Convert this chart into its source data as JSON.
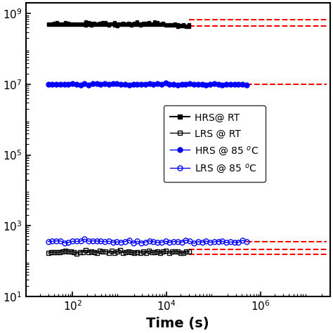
{
  "xlabel": "Time (s)",
  "xlim": [
    10,
    30000000.0
  ],
  "ylim": [
    10,
    2000000000.0
  ],
  "HRS_RT_x_start": 30,
  "HRS_RT_x_end": 30000,
  "HRS_RT_y_center": 500000000.0,
  "HRS_RT_y_top": 650000000.0,
  "HRS_RT_y_bot": 480000000.0,
  "LRS_RT_x_start": 30,
  "LRS_RT_x_end": 30000,
  "LRS_RT_y": 180.0,
  "HRS_85_x_start": 30,
  "HRS_85_x_end": 500000,
  "HRS_85_y": 10000000.0,
  "LRS_85_x_start": 30,
  "LRS_85_x_end": 500000,
  "LRS_85_y": 350.0,
  "dash_x_end": 25000000.0,
  "dash_HRS_RT_upper": 680000000.0,
  "dash_HRS_RT_lower": 450000000.0,
  "dash_LRS_RT_upper": 210.0,
  "dash_LRS_RT_lower": 155.0,
  "dash_HRS_85": 10000000.0,
  "dash_LRS_85": 350.0,
  "n_RT": 50,
  "n_85": 50,
  "legend_labels": [
    "HRS@ RT",
    "LRS @ RT",
    "HRS @ 85 $^o$C",
    "LRS @ 85 $^o$C"
  ],
  "color_black": "#000000",
  "color_blue": "#0000FF",
  "color_red_dash": "#FF0000",
  "bg_color": "#FFFFFF",
  "text_color": "#000000"
}
